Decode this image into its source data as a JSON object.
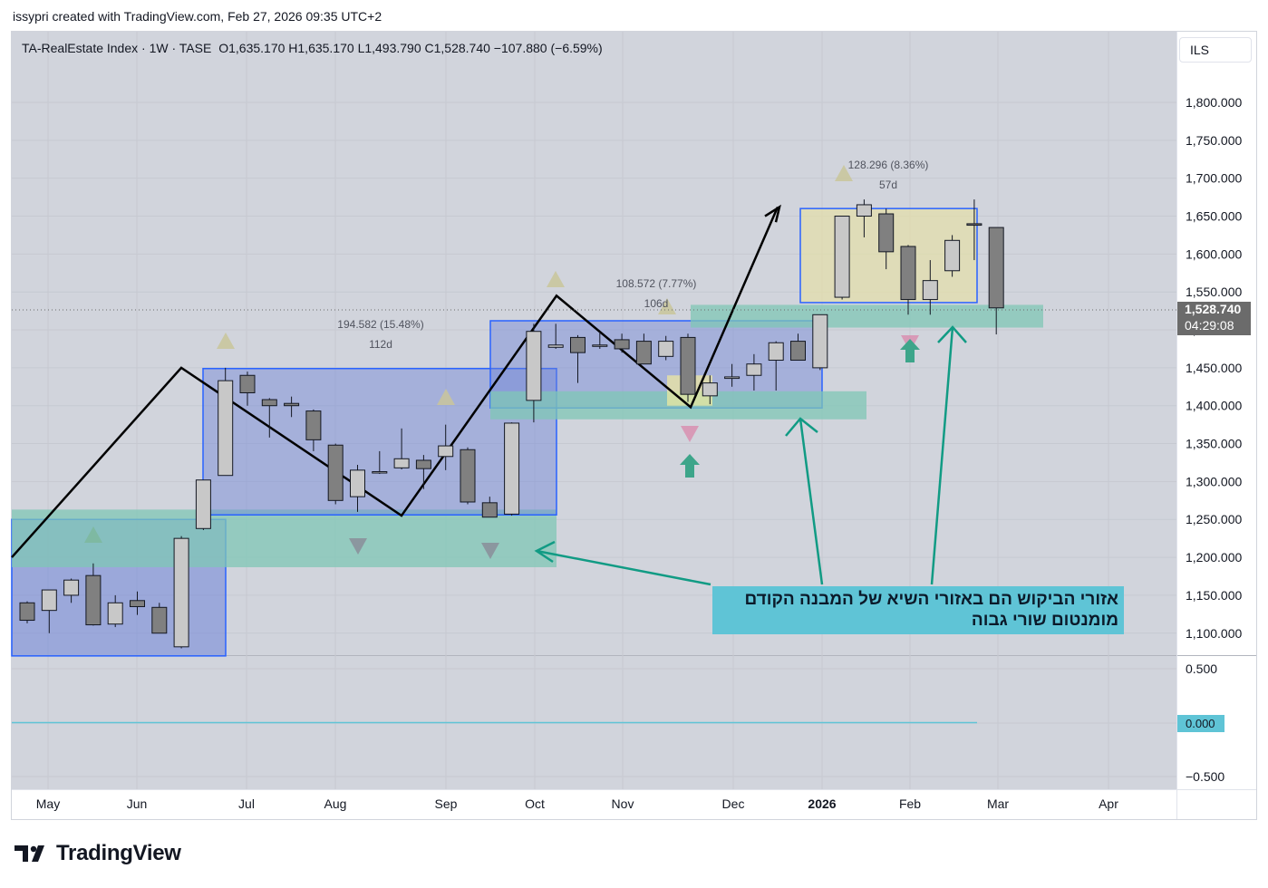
{
  "header": {
    "credit": "issypri created with TradingView.com, Feb 27, 2026 09:35 UTC+2"
  },
  "symbol": {
    "name": "TA-RealEstate Index",
    "interval": "1W",
    "exchange": "TASE",
    "ohlc_text": "O1,635.170  H1,635.170  L1,493.790  C1,528.740  −107.880 (−6.59%)"
  },
  "currency": "ILS",
  "last_price": {
    "value": "1,528.740",
    "countdown": "04:29:08"
  },
  "indicator": {
    "zero_label": "0.000"
  },
  "annotation": {
    "line1": "אזורי הביקוש הם באזורי השיא של המבנה הקודם",
    "line2": "מומנטום שורי גבוה"
  },
  "footer": {
    "brand": "TradingView"
  },
  "colors": {
    "up_body": "#c8c8c8",
    "down_body": "#808080",
    "wick": "#131722",
    "zone_blue": "#6f84d8",
    "zone_green": "#7fc7b6",
    "zone_yellow": "#e6e0a8",
    "arrow_teal": "#119b84",
    "label_badge": "#6b6b6b",
    "indicator_line": "#5fc4d6"
  },
  "measurements": [
    {
      "price_text": "194.582 (15.48%)",
      "bars_text": "112d"
    },
    {
      "price_text": "108.572 (7.77%)",
      "bars_text": "106d"
    },
    {
      "price_text": "128.296 (8.36%)",
      "bars_text": "57d"
    }
  ],
  "chart_data": {
    "type": "candlestick",
    "title": "TA-RealEstate Index · 1W · TASE",
    "xlabel": "",
    "ylabel": "",
    "x_ticks": [
      "May",
      "Jun",
      "Jul",
      "Aug",
      "Sep",
      "Oct",
      "Nov",
      "Dec",
      "2026",
      "Feb",
      "Mar",
      "Apr"
    ],
    "y_ticks": [
      "1,100.000",
      "1,150.000",
      "1,200.000",
      "1,250.000",
      "1,300.000",
      "1,350.000",
      "1,400.000",
      "1,450.000",
      "1,500.000",
      "1,550.000",
      "1,600.000",
      "1,650.000",
      "1,700.000",
      "1,750.000",
      "1,800.000"
    ],
    "indicator_ticks": [
      "0.500",
      "0.000",
      "−0.500"
    ],
    "ylim": [
      1075,
      1900
    ],
    "candles": [
      {
        "o": 1140,
        "h": 1142,
        "l": 1113,
        "c": 1117
      },
      {
        "o": 1130,
        "h": 1155,
        "l": 1100,
        "c": 1157
      },
      {
        "o": 1150,
        "h": 1172,
        "l": 1140,
        "c": 1170
      },
      {
        "o": 1176,
        "h": 1192,
        "l": 1110,
        "c": 1111
      },
      {
        "o": 1112,
        "h": 1150,
        "l": 1108,
        "c": 1140
      },
      {
        "o": 1143,
        "h": 1155,
        "l": 1124,
        "c": 1135
      },
      {
        "o": 1134,
        "h": 1140,
        "l": 1100,
        "c": 1100
      },
      {
        "o": 1082,
        "h": 1228,
        "l": 1080,
        "c": 1225
      },
      {
        "o": 1238,
        "h": 1302,
        "l": 1236,
        "c": 1302
      },
      {
        "o": 1308,
        "h": 1450,
        "l": 1308,
        "c": 1433
      },
      {
        "o": 1440,
        "h": 1445,
        "l": 1400,
        "c": 1417
      },
      {
        "o": 1408,
        "h": 1410,
        "l": 1358,
        "c": 1400
      },
      {
        "o": 1403,
        "h": 1412,
        "l": 1385,
        "c": 1400
      },
      {
        "o": 1393,
        "h": 1395,
        "l": 1340,
        "c": 1355
      },
      {
        "o": 1348,
        "h": 1350,
        "l": 1270,
        "c": 1275
      },
      {
        "o": 1280,
        "h": 1322,
        "l": 1260,
        "c": 1315
      },
      {
        "o": 1313,
        "h": 1340,
        "l": 1310,
        "c": 1313
      },
      {
        "o": 1318,
        "h": 1370,
        "l": 1316,
        "c": 1330
      },
      {
        "o": 1328,
        "h": 1335,
        "l": 1290,
        "c": 1317
      },
      {
        "o": 1333,
        "h": 1375,
        "l": 1315,
        "c": 1347
      },
      {
        "o": 1342,
        "h": 1345,
        "l": 1270,
        "c": 1273
      },
      {
        "o": 1272,
        "h": 1280,
        "l": 1255,
        "c": 1253
      },
      {
        "o": 1257,
        "h": 1378,
        "l": 1255,
        "c": 1377
      },
      {
        "o": 1407,
        "h": 1508,
        "l": 1378,
        "c": 1498
      },
      {
        "o": 1477,
        "h": 1508,
        "l": 1475,
        "c": 1480
      },
      {
        "o": 1490,
        "h": 1493,
        "l": 1430,
        "c": 1470
      },
      {
        "o": 1480,
        "h": 1498,
        "l": 1475,
        "c": 1480
      },
      {
        "o": 1487,
        "h": 1495,
        "l": 1470,
        "c": 1475
      },
      {
        "o": 1485,
        "h": 1495,
        "l": 1455,
        "c": 1455
      },
      {
        "o": 1465,
        "h": 1492,
        "l": 1460,
        "c": 1485
      },
      {
        "o": 1490,
        "h": 1495,
        "l": 1405,
        "c": 1415
      },
      {
        "o": 1413,
        "h": 1440,
        "l": 1402,
        "c": 1430
      },
      {
        "o": 1436,
        "h": 1455,
        "l": 1425,
        "c": 1438
      },
      {
        "o": 1440,
        "h": 1468,
        "l": 1420,
        "c": 1455
      },
      {
        "o": 1460,
        "h": 1485,
        "l": 1420,
        "c": 1483
      },
      {
        "o": 1485,
        "h": 1495,
        "l": 1460,
        "c": 1460
      },
      {
        "o": 1450,
        "h": 1520,
        "l": 1447,
        "c": 1520
      },
      {
        "o": 1543,
        "h": 1650,
        "l": 1540,
        "c": 1650
      },
      {
        "o": 1650,
        "h": 1672,
        "l": 1622,
        "c": 1665
      },
      {
        "o": 1653,
        "h": 1660,
        "l": 1580,
        "c": 1603
      },
      {
        "o": 1610,
        "h": 1612,
        "l": 1520,
        "c": 1540
      },
      {
        "o": 1540,
        "h": 1592,
        "l": 1520,
        "c": 1565
      },
      {
        "o": 1578,
        "h": 1625,
        "l": 1570,
        "c": 1618
      },
      {
        "o": 1640,
        "h": 1672,
        "l": 1592,
        "c": 1638
      },
      {
        "o": 1635,
        "h": 1635,
        "l": 1494,
        "c": 1529
      }
    ],
    "grid": true
  }
}
